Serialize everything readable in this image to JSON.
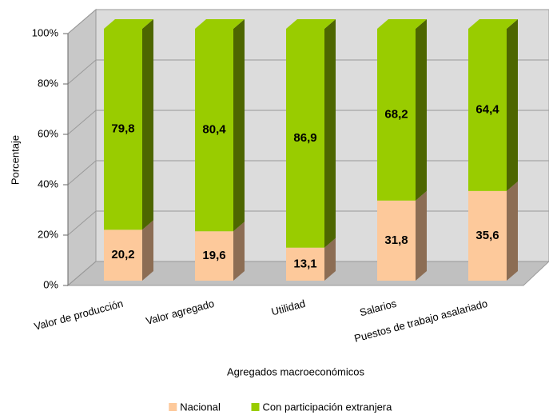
{
  "chart_data": {
    "type": "bar3d_stacked",
    "categories": [
      "Valor de producción",
      "Valor agregado",
      "Utilidad",
      "Salarios",
      "Puestos de trabajo asalariado"
    ],
    "series": [
      {
        "name": "Nacional",
        "color": "#fdc99b",
        "side_color": "#8c6d54",
        "values": [
          20.2,
          19.6,
          13.1,
          31.8,
          35.6
        ],
        "value_labels": [
          "20,2",
          "19,6",
          "13,1",
          "31,8",
          "35,6"
        ]
      },
      {
        "name": "Con participación extranjera",
        "color": "#99cc00",
        "side_color": "#4d6600",
        "values": [
          79.8,
          80.4,
          86.9,
          68.2,
          64.4
        ],
        "value_labels": [
          "79,8",
          "80,4",
          "86,9",
          "68,2",
          "64,4"
        ]
      }
    ],
    "ylabel": "Porcentaje",
    "xlabel": "Agregados macroeconómicos",
    "ylim": [
      0,
      100
    ],
    "yticks": [
      {
        "value": 0,
        "label": "0%"
      },
      {
        "value": 20,
        "label": "20%"
      },
      {
        "value": 40,
        "label": "40%"
      },
      {
        "value": 60,
        "label": "60%"
      },
      {
        "value": 80,
        "label": "80%"
      },
      {
        "value": 100,
        "label": "100%"
      }
    ],
    "grid": true,
    "legend": "bottom"
  }
}
